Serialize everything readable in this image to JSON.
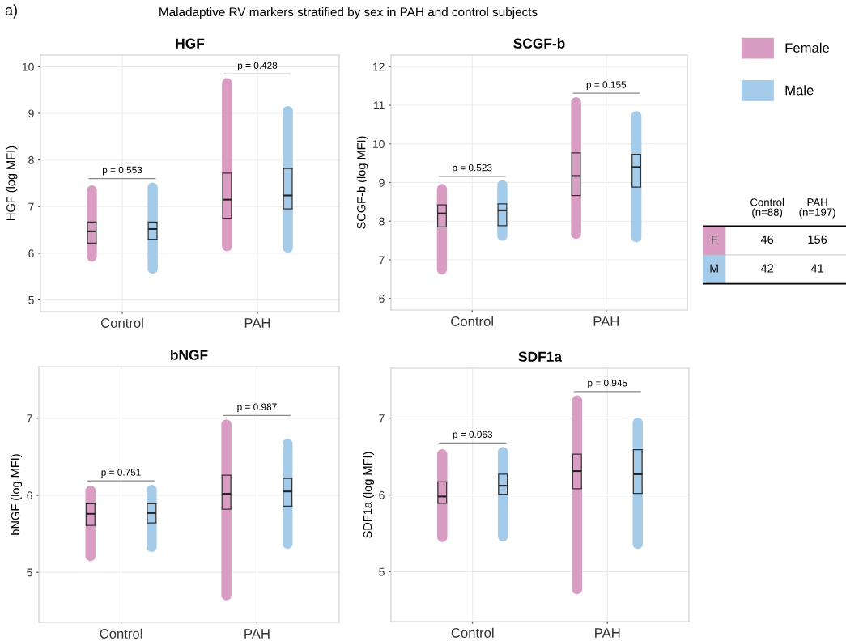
{
  "chart_data": [
    {
      "type": "box",
      "title": "HGF",
      "ylabel": "HGF (log MFI)",
      "categories": [
        "Control",
        "PAH"
      ],
      "ylim": [
        4.75,
        10.25
      ],
      "yticks": [
        5,
        6,
        7,
        8,
        9,
        10
      ],
      "grid": true,
      "legend": "right",
      "series": [
        {
          "name": "Female",
          "color": "#d99cc2",
          "boxes": [
            {
              "low": 5.93,
              "q1": 6.22,
              "median": 6.47,
              "q3": 6.67,
              "high": 7.35
            },
            {
              "low": 6.15,
              "q1": 6.75,
              "median": 7.15,
              "q3": 7.72,
              "high": 9.65
            }
          ]
        },
        {
          "name": "Male",
          "color": "#a5cbeb",
          "boxes": [
            {
              "low": 5.67,
              "q1": 6.3,
              "median": 6.52,
              "q3": 6.67,
              "high": 7.41
            },
            {
              "low": 6.12,
              "q1": 6.95,
              "median": 7.24,
              "q3": 7.82,
              "high": 9.05
            }
          ]
        }
      ],
      "annotations": [
        "p = 0.553",
        "p = 0.428"
      ]
    },
    {
      "type": "box",
      "title": "SCGF-b",
      "ylabel": "SCGF-b (log MFI)",
      "categories": [
        "Control",
        "PAH"
      ],
      "ylim": [
        5.7,
        12.3
      ],
      "yticks": [
        6,
        7,
        8,
        9,
        10,
        11,
        12
      ],
      "grid": true,
      "series": [
        {
          "name": "Female",
          "color": "#d99cc2",
          "boxes": [
            {
              "low": 6.75,
              "q1": 7.85,
              "median": 8.2,
              "q3": 8.42,
              "high": 8.83
            },
            {
              "low": 7.67,
              "q1": 8.66,
              "median": 9.17,
              "q3": 9.77,
              "high": 11.08
            }
          ]
        },
        {
          "name": "Male",
          "color": "#a5cbeb",
          "boxes": [
            {
              "low": 7.62,
              "q1": 7.88,
              "median": 8.28,
              "q3": 8.45,
              "high": 8.93
            },
            {
              "low": 7.58,
              "q1": 8.88,
              "median": 9.4,
              "q3": 9.73,
              "high": 10.72
            }
          ]
        }
      ],
      "annotations": [
        "p = 0.523",
        "p = 0.155"
      ]
    },
    {
      "type": "box",
      "title": "bNGF",
      "ylabel": "bNGF (log MFI)",
      "categories": [
        "Control",
        "PAH"
      ],
      "ylim": [
        4.35,
        7.67
      ],
      "yticks": [
        5,
        6,
        7
      ],
      "grid": true,
      "series": [
        {
          "name": "Female",
          "color": "#d99cc2",
          "boxes": [
            {
              "low": 5.21,
              "q1": 5.61,
              "median": 5.76,
              "q3": 5.89,
              "high": 6.06
            },
            {
              "low": 4.7,
              "q1": 5.82,
              "median": 6.02,
              "q3": 6.26,
              "high": 6.92
            }
          ]
        },
        {
          "name": "Male",
          "color": "#a5cbeb",
          "boxes": [
            {
              "low": 5.33,
              "q1": 5.64,
              "median": 5.77,
              "q3": 5.89,
              "high": 6.07
            },
            {
              "low": 5.37,
              "q1": 5.86,
              "median": 6.05,
              "q3": 6.22,
              "high": 6.67
            }
          ]
        }
      ],
      "annotations": [
        "p = 0.751",
        "p = 0.987"
      ]
    },
    {
      "type": "box",
      "title": "SDF1a",
      "ylabel": "SDF1a (log MFI)",
      "categories": [
        "Control",
        "PAH"
      ],
      "ylim": [
        4.35,
        7.65
      ],
      "yticks": [
        5,
        6,
        7
      ],
      "grid": true,
      "series": [
        {
          "name": "Female",
          "color": "#d99cc2",
          "boxes": [
            {
              "low": 5.45,
              "q1": 5.89,
              "median": 5.98,
              "q3": 6.17,
              "high": 6.53
            },
            {
              "low": 4.77,
              "q1": 6.08,
              "median": 6.31,
              "q3": 6.53,
              "high": 7.23
            }
          ]
        },
        {
          "name": "Male",
          "color": "#a5cbeb",
          "boxes": [
            {
              "low": 5.46,
              "q1": 6.01,
              "median": 6.12,
              "q3": 6.27,
              "high": 6.56
            },
            {
              "low": 5.36,
              "q1": 6.02,
              "median": 6.27,
              "q3": 6.59,
              "high": 6.94
            }
          ]
        }
      ],
      "annotations": [
        "p = 0.063",
        "p = 0.945"
      ]
    },
    {
      "type": "other",
      "title": "Maladaptive RV markers stratified by sex in PAH and control subjects",
      "annotations": [
        "a)",
        "46",
        "156",
        "42",
        "41"
      ],
      "categories": [
        "Control\n(n=88)",
        "PAH\n(n=197)"
      ],
      "y_categories": [
        "F",
        "M"
      ],
      "colors": [
        "#d99cc2",
        "#a5cbeb"
      ]
    }
  ]
}
